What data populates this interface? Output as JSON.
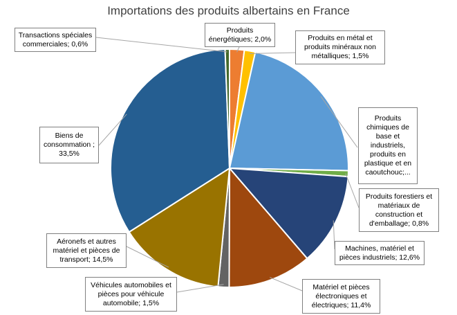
{
  "chart_data": {
    "type": "pie",
    "title": "Importations des produits albertains en France",
    "start_angle_deg": 0,
    "direction": "clockwise",
    "slices": [
      {
        "label": "Produits énergétiques; 2,0%",
        "value": 2.0,
        "color": "#ED7D31"
      },
      {
        "label": "Produits en métal et produits minéraux non métalliques; 1,5%",
        "value": 1.5,
        "color": "#FFC000"
      },
      {
        "label": "Produits chimiques de base et industriels, produits en plastique et en caoutchouc;...",
        "value": 21.9,
        "color": "#5B9BD5"
      },
      {
        "label": "Produits forestiers et matériaux de construction et d'emballage; 0,8%",
        "value": 0.8,
        "color": "#70AD47"
      },
      {
        "label": "Machines, matériel et pièces industriels; 12,6%",
        "value": 12.6,
        "color": "#264478"
      },
      {
        "label": "Matériel et pièces électroniques et électriques; 11,4%",
        "value": 11.4,
        "color": "#9E480E"
      },
      {
        "label": "Véhicules automobiles et pièces pour véhicule automobile; 1,5%",
        "value": 1.5,
        "color": "#636363"
      },
      {
        "label": "Aéronefs et autres matériel et pièces de transport; 14,5%",
        "value": 14.5,
        "color": "#997300"
      },
      {
        "label": "Biens de consommation ; 33,5%",
        "value": 33.5,
        "color": "#255E91"
      },
      {
        "label": "Transactions spéciales commerciales; 0,6%",
        "value": 0.6,
        "color": "#43682B"
      }
    ]
  }
}
